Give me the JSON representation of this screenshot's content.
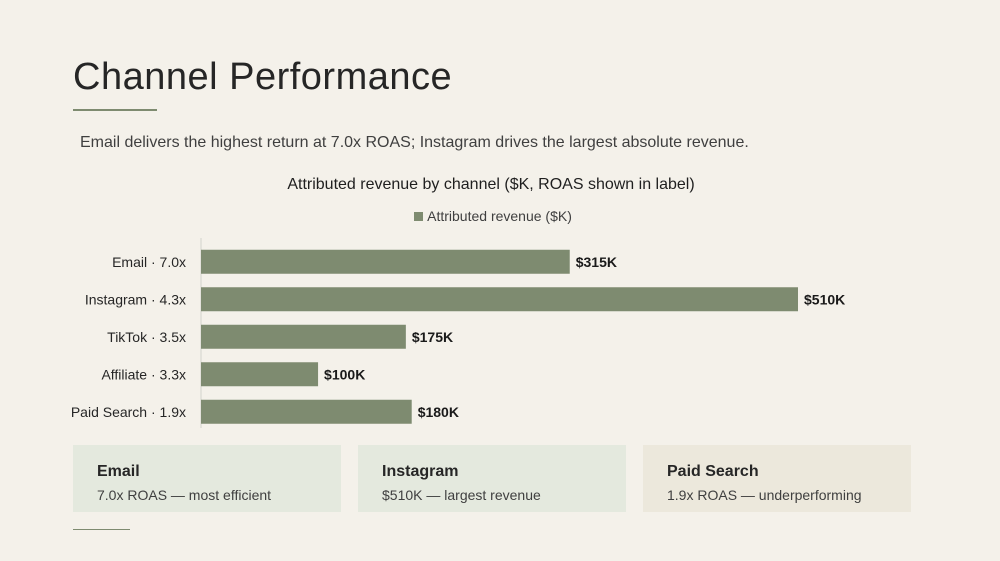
{
  "slide": {
    "title": "Channel Performance",
    "subtitle": "Email delivers the highest return at 7.0x ROAS; Instagram drives the largest absolute revenue."
  },
  "colors": {
    "background": "#f4f1ea",
    "bar": "#7e8b70",
    "card": "#e4e9de",
    "card_alt": "#ece8dc"
  },
  "chart_data": {
    "type": "bar",
    "orientation": "horizontal",
    "title": "Attributed revenue by channel ($K, ROAS shown in label)",
    "legend_position": "top",
    "categories": [
      "Email · 7.0x",
      "Instagram · 4.3x",
      "TikTok · 3.5x",
      "Affiliate · 3.3x",
      "Paid Search · 1.9x"
    ],
    "series": [
      {
        "name": "Attributed revenue ($K)",
        "values": [
          315,
          510,
          175,
          100,
          180
        ],
        "data_labels": [
          "$315K",
          "$510K",
          "$175K",
          "$100K",
          "$180K"
        ]
      }
    ],
    "xlim": [
      0,
      510
    ],
    "grid": false
  },
  "cards": [
    {
      "title": "Email",
      "text": "7.0x ROAS — most efficient"
    },
    {
      "title": "Instagram",
      "text": "$510K — largest revenue"
    },
    {
      "title": "Paid Search",
      "text": "1.9x ROAS — underperforming"
    }
  ]
}
